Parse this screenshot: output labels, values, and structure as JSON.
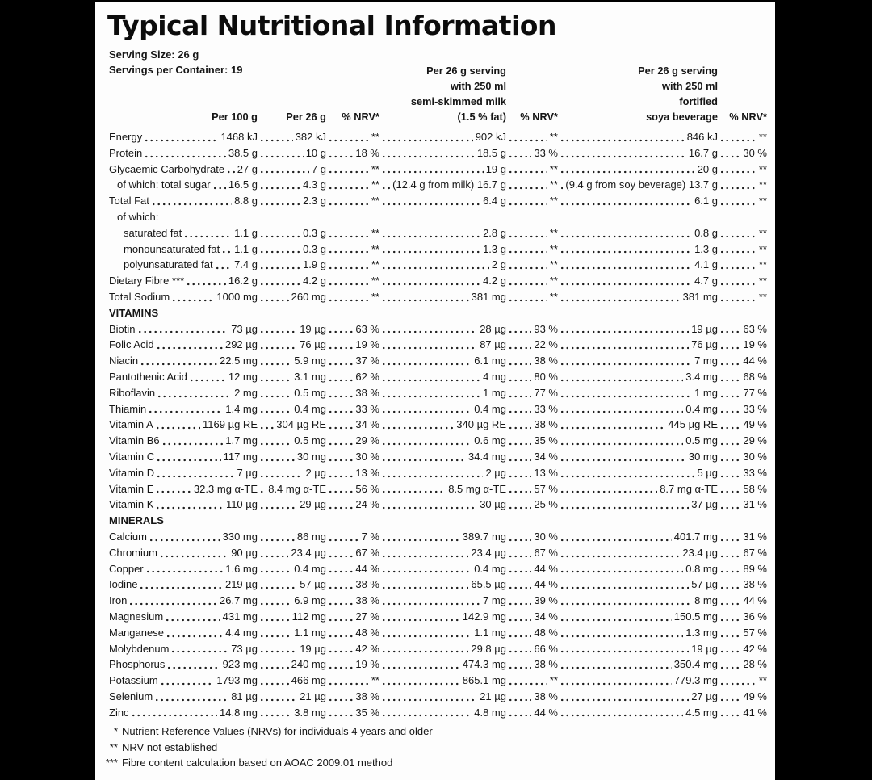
{
  "colors": {
    "background": "#000000",
    "panel": "#fdfdfd",
    "text": "#161616"
  },
  "label": {
    "title": "Typical Nutritional Information",
    "serving_size": "Serving Size: 26 g",
    "servings_per_container": "Servings per Container: 19"
  },
  "table": {
    "headers": {
      "per_100g": "Per 100 g",
      "per_26g": "Per 26 g",
      "nrv": "% NRV*",
      "milk_lines": [
        "Per 26 g serving",
        "with 250 ml",
        "semi-skimmed milk",
        "(1.5 % fat)"
      ],
      "soy_lines": [
        "Per 26 g serving",
        "with 250 ml",
        "fortified",
        "soya beverage"
      ]
    },
    "column_order": [
      "per_100g",
      "per_26g",
      "nrv_1",
      "milk_serving",
      "nrv_2",
      "soy_serving",
      "nrv_3"
    ],
    "sections": [
      {
        "name": null,
        "rows": [
          {
            "label": "Energy",
            "indent": 0,
            "values": [
              "1468 kJ",
              "382 kJ",
              "**",
              "902 kJ",
              "**",
              "846 kJ",
              "**"
            ]
          },
          {
            "label": "Protein",
            "indent": 0,
            "values": [
              "38.5 g",
              "10 g",
              "18 %",
              "18.5 g",
              "33 %",
              "16.7 g",
              "30 %"
            ]
          },
          {
            "label": "Glycaemic Carbohydrate",
            "indent": 0,
            "values": [
              "27 g",
              "7 g",
              "**",
              "19 g",
              "**",
              "20 g",
              "**"
            ]
          },
          {
            "label": "of which: total sugar",
            "indent": 1,
            "values": [
              "16.5 g",
              "4.3 g",
              "**",
              "(12.4 g from milk) 16.7 g",
              "**",
              "(9.4 g from soy beverage) 13.7 g",
              "**"
            ]
          },
          {
            "label": "Total Fat",
            "indent": 0,
            "values": [
              "8.8 g",
              "2.3 g",
              "**",
              "6.4 g",
              "**",
              "6.1 g",
              "**"
            ]
          },
          {
            "label": "of which:",
            "indent": 1,
            "values": null
          },
          {
            "label": "saturated fat",
            "indent": 2,
            "values": [
              "1.1 g",
              "0.3 g",
              "**",
              "2.8 g",
              "**",
              "0.8 g",
              "**"
            ]
          },
          {
            "label": "monounsaturated fat",
            "indent": 2,
            "values": [
              "1.1 g",
              "0.3 g",
              "**",
              "1.3 g",
              "**",
              "1.3 g",
              "**"
            ]
          },
          {
            "label": "polyunsaturated fat",
            "indent": 2,
            "values": [
              "7.4 g",
              "1.9 g",
              "**",
              "2 g",
              "**",
              "4.1 g",
              "**"
            ]
          },
          {
            "label": "Dietary Fibre ***",
            "indent": 0,
            "values": [
              "16.2 g",
              "4.2 g",
              "**",
              "4.2 g",
              "**",
              "4.7 g",
              "**"
            ]
          },
          {
            "label": "Total Sodium",
            "indent": 0,
            "values": [
              "1000 mg",
              "260 mg",
              "**",
              "381 mg",
              "**",
              "381 mg",
              "**"
            ]
          }
        ]
      },
      {
        "name": "VITAMINS",
        "rows": [
          {
            "label": "Biotin",
            "indent": 0,
            "values": [
              "73 µg",
              "19 µg",
              "63 %",
              "28 µg",
              "93 %",
              "19 µg",
              "63 %"
            ]
          },
          {
            "label": "Folic Acid",
            "indent": 0,
            "values": [
              "292 µg",
              "76 µg",
              "19 %",
              "87 µg",
              "22 %",
              "76 µg",
              "19 %"
            ]
          },
          {
            "label": "Niacin",
            "indent": 0,
            "values": [
              "22.5 mg",
              "5.9 mg",
              "37 %",
              "6.1 mg",
              "38 %",
              "7 mg",
              "44 %"
            ]
          },
          {
            "label": "Pantothenic Acid",
            "indent": 0,
            "values": [
              "12 mg",
              "3.1 mg",
              "62 %",
              "4 mg",
              "80 %",
              "3.4 mg",
              "68 %"
            ]
          },
          {
            "label": "Riboflavin",
            "indent": 0,
            "values": [
              "2 mg",
              "0.5 mg",
              "38 %",
              "1 mg",
              "77 %",
              "1 mg",
              "77 %"
            ]
          },
          {
            "label": "Thiamin",
            "indent": 0,
            "values": [
              "1.4 mg",
              "0.4 mg",
              "33 %",
              "0.4 mg",
              "33 %",
              "0.4 mg",
              "33 %"
            ]
          },
          {
            "label": "Vitamin A",
            "indent": 0,
            "values": [
              "1169 µg RE",
              "304 µg RE",
              "34 %",
              "340 µg RE",
              "38 %",
              "445 µg RE",
              "49 %"
            ]
          },
          {
            "label": "Vitamin B6",
            "indent": 0,
            "values": [
              "1.7 mg",
              "0.5 mg",
              "29 %",
              "0.6 mg",
              "35 %",
              "0.5 mg",
              "29 %"
            ]
          },
          {
            "label": "Vitamin C",
            "indent": 0,
            "values": [
              "117 mg",
              "30 mg",
              "30 %",
              "34.4 mg",
              "34 %",
              "30 mg",
              "30 %"
            ]
          },
          {
            "label": "Vitamin D",
            "indent": 0,
            "values": [
              "7 µg",
              "2 µg",
              "13 %",
              "2 µg",
              "13 %",
              "5 µg",
              "33 %"
            ]
          },
          {
            "label": "Vitamin E",
            "indent": 0,
            "values": [
              "32.3 mg α-TE",
              "8.4 mg α-TE",
              "56 %",
              "8.5 mg α-TE",
              "57 %",
              "8.7 mg α-TE",
              "58 %"
            ]
          },
          {
            "label": "Vitamin K",
            "indent": 0,
            "values": [
              "110 µg",
              "29 µg",
              "24 %",
              "30 µg",
              "25 %",
              "37 µg",
              "31 %"
            ]
          }
        ]
      },
      {
        "name": "MINERALS",
        "rows": [
          {
            "label": "Calcium",
            "indent": 0,
            "values": [
              "330 mg",
              "86 mg",
              "7 %",
              "389.7 mg",
              "30 %",
              "401.7 mg",
              "31 %"
            ]
          },
          {
            "label": "Chromium",
            "indent": 0,
            "values": [
              "90 µg",
              "23.4 µg",
              "67 %",
              "23.4 µg",
              "67 %",
              "23.4 µg",
              "67 %"
            ]
          },
          {
            "label": "Copper",
            "indent": 0,
            "values": [
              "1.6 mg",
              "0.4 mg",
              "44 %",
              "0.4 mg",
              "44 %",
              "0.8 mg",
              "89 %"
            ]
          },
          {
            "label": "Iodine",
            "indent": 0,
            "values": [
              "219 µg",
              "57 µg",
              "38 %",
              "65.5 µg",
              "44 %",
              "57 µg",
              "38 %"
            ]
          },
          {
            "label": "Iron",
            "indent": 0,
            "values": [
              "26.7 mg",
              "6.9 mg",
              "38 %",
              "7 mg",
              "39 %",
              "8 mg",
              "44 %"
            ]
          },
          {
            "label": "Magnesium",
            "indent": 0,
            "values": [
              "431 mg",
              "112 mg",
              "27 %",
              "142.9 mg",
              "34 %",
              "150.5 mg",
              "36 %"
            ]
          },
          {
            "label": "Manganese",
            "indent": 0,
            "values": [
              "4.4 mg",
              "1.1 mg",
              "48 %",
              "1.1 mg",
              "48 %",
              "1.3 mg",
              "57 %"
            ]
          },
          {
            "label": "Molybdenum",
            "indent": 0,
            "values": [
              "73 µg",
              "19 µg",
              "42 %",
              "29.8 µg",
              "66 %",
              "19 µg",
              "42 %"
            ]
          },
          {
            "label": "Phosphorus",
            "indent": 0,
            "values": [
              "923 mg",
              "240 mg",
              "19 %",
              "474.3 mg",
              "38 %",
              "350.4 mg",
              "28 %"
            ]
          },
          {
            "label": "Potassium",
            "indent": 0,
            "values": [
              "1793 mg",
              "466 mg",
              "**",
              "865.1 mg",
              "**",
              "779.3 mg",
              "**"
            ]
          },
          {
            "label": "Selenium",
            "indent": 0,
            "values": [
              "81 µg",
              "21 µg",
              "38 %",
              "21 µg",
              "38 %",
              "27 µg",
              "49 %"
            ]
          },
          {
            "label": "Zinc",
            "indent": 0,
            "values": [
              "14.8 mg",
              "3.8 mg",
              "35 %",
              "4.8 mg",
              "44 %",
              "4.5 mg",
              "41 %"
            ]
          }
        ]
      }
    ]
  },
  "footnotes": [
    {
      "marker": "*",
      "text": "Nutrient Reference Values (NRVs) for individuals 4 years and older"
    },
    {
      "marker": "**",
      "text": "NRV not established"
    },
    {
      "marker": "***",
      "text": "Fibre content calculation based on AOAC 2009.01 method"
    }
  ]
}
